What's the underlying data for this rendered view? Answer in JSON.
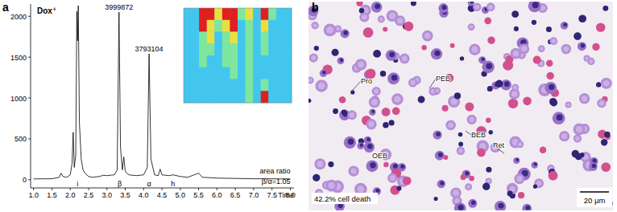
{
  "chart_data": {
    "type": "line",
    "panel": "a",
    "title": "Dox⁺",
    "x_label": "Time",
    "x": [
      1.0,
      1.5,
      1.7,
      1.75,
      1.8,
      1.9,
      2.0,
      2.05,
      2.08,
      2.11,
      2.15,
      2.18,
      2.2,
      2.22,
      2.25,
      2.3,
      2.35,
      2.4,
      2.5,
      2.6,
      2.8,
      2.9,
      3.0,
      3.1,
      3.2,
      3.28,
      3.33,
      3.37,
      3.42,
      3.46,
      3.5,
      3.6,
      3.8,
      4.0,
      4.1,
      4.15,
      4.2,
      4.3,
      4.4,
      4.45,
      4.5,
      4.7,
      4.8,
      5.0,
      5.2,
      5.5,
      5.6,
      6.0,
      7.0,
      8.0
    ],
    "values": [
      10,
      12,
      30,
      80,
      40,
      30,
      60,
      200,
      580,
      150,
      300,
      2060,
      1700,
      2130,
      700,
      250,
      120,
      80,
      40,
      30,
      40,
      55,
      50,
      55,
      60,
      120,
      2050,
      400,
      120,
      280,
      100,
      60,
      50,
      60,
      150,
      1540,
      250,
      60,
      50,
      130,
      60,
      50,
      60,
      40,
      30,
      80,
      30,
      20,
      12,
      10
    ],
    "color": "#000000",
    "xlim": [
      0.92,
      8.1
    ],
    "xticks": [
      {
        "value": 1,
        "label": "1.0"
      },
      1.5,
      {
        "value": 2,
        "label": "2.0"
      },
      2.5,
      {
        "value": 3,
        "label": "3.0"
      },
      3.5,
      {
        "value": 4,
        "label": "4.0"
      },
      4.5,
      {
        "value": 5,
        "label": "5.0"
      },
      5.5,
      {
        "value": 6,
        "label": "6.0"
      },
      6.5,
      {
        "value": 7,
        "label": "7.0"
      },
      7.5,
      {
        "value": 8,
        "label": "8.0"
      }
    ],
    "ylim": [
      -100,
      2150
    ],
    "yticks": [
      0,
      500,
      1000,
      1500,
      2000
    ],
    "grid": false,
    "annotations": [
      {
        "text": "3999872",
        "x": 3.33,
        "y": 2050
      },
      {
        "text": "3793104",
        "x": 4.15,
        "y": 1540
      },
      {
        "text": "area ratio",
        "x": 8.0,
        "y": 106
      },
      {
        "text": "β/α=1.05",
        "x": 8.0,
        "y": -20
      }
    ],
    "peak_labels": [
      {
        "text": "i",
        "x": 2.2
      },
      {
        "text": "β",
        "x": 3.35
      },
      {
        "text": "α",
        "x": 4.15
      },
      {
        "text": "h",
        "x": 4.8
      }
    ],
    "inset": {
      "type": "heatmap",
      "zlim": [
        0,
        3
      ],
      "cells": [
        [
          0,
          0,
          3,
          3,
          2,
          3,
          3,
          1,
          2,
          0,
          3,
          1,
          0,
          0
        ],
        [
          0,
          0,
          3,
          2,
          1,
          2,
          3,
          0,
          1,
          0,
          2,
          0,
          0,
          0
        ],
        [
          0,
          0,
          1,
          2,
          0,
          1,
          2,
          0,
          1,
          0,
          1,
          0,
          0,
          0
        ],
        [
          0,
          0,
          1,
          1,
          0,
          1,
          1,
          0,
          1,
          0,
          1,
          0,
          0,
          0
        ],
        [
          0,
          0,
          1,
          0,
          0,
          1,
          1,
          0,
          1,
          0,
          0,
          0,
          0,
          0
        ],
        [
          0,
          0,
          0,
          0,
          0,
          0,
          1,
          0,
          1,
          0,
          0,
          0,
          0,
          0
        ],
        [
          0,
          0,
          0,
          0,
          0,
          0,
          0,
          0,
          1,
          0,
          1,
          0,
          0,
          0
        ],
        [
          0,
          0,
          0,
          0,
          0,
          0,
          0,
          0,
          1,
          0,
          3,
          0,
          0,
          0
        ]
      ]
    }
  },
  "panel_b": {
    "panel": "b",
    "cell_labels": [
      "Pro",
      "PEB",
      "BEB",
      "OEB",
      "Ret"
    ],
    "caption": "42.2% cell death",
    "scale_bar": "20 μm"
  }
}
